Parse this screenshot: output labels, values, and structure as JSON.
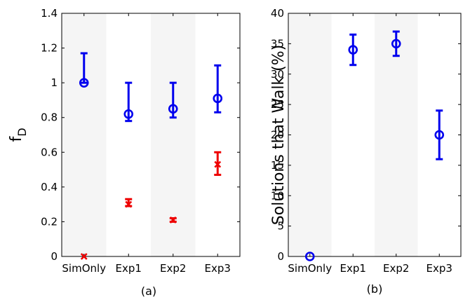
{
  "chart_data": [
    {
      "type": "scatter",
      "panel_label": "(a)",
      "ylabel_main": "f",
      "ylabel_sub": "D",
      "categories": [
        "SimOnly",
        "Exp1",
        "Exp2",
        "Exp3"
      ],
      "ylim": [
        0,
        1.4
      ],
      "yticks": [
        0,
        0.2,
        0.4,
        0.6,
        0.8,
        1,
        1.2,
        1.4
      ],
      "shaded_categories": [
        "SimOnly",
        "Exp2"
      ],
      "series": [
        {
          "marker": "circle",
          "color": "#0000ee",
          "points": [
            {
              "category": "SimOnly",
              "y": 1.0,
              "low": 1.0,
              "high": 1.17
            },
            {
              "category": "Exp1",
              "y": 0.82,
              "low": 0.78,
              "high": 1.0
            },
            {
              "category": "Exp2",
              "y": 0.85,
              "low": 0.8,
              "high": 1.0
            },
            {
              "category": "Exp3",
              "y": 0.91,
              "low": 0.83,
              "high": 1.1
            }
          ]
        },
        {
          "marker": "x",
          "color": "#ee0000",
          "points": [
            {
              "category": "SimOnly",
              "y": 0.0,
              "low": 0.0,
              "high": 0.0
            },
            {
              "category": "Exp1",
              "y": 0.3,
              "low": 0.29,
              "high": 0.33
            },
            {
              "category": "Exp2",
              "y": 0.21,
              "low": 0.2,
              "high": 0.22
            },
            {
              "category": "Exp3",
              "y": 0.53,
              "low": 0.47,
              "high": 0.6
            }
          ]
        }
      ]
    },
    {
      "type": "scatter",
      "panel_label": "(b)",
      "ylabel_main": "Solutions that Walk (%)",
      "ylabel_sub": "",
      "categories": [
        "SimOnly",
        "Exp1",
        "Exp2",
        "Exp3"
      ],
      "ylim": [
        0,
        40
      ],
      "yticks": [
        0,
        5,
        10,
        15,
        20,
        25,
        30,
        35,
        40
      ],
      "shaded_categories": [
        "SimOnly",
        "Exp2"
      ],
      "series": [
        {
          "marker": "circle",
          "color": "#0000ee",
          "points": [
            {
              "category": "SimOnly",
              "y": 0,
              "low": 0,
              "high": 0
            },
            {
              "category": "Exp1",
              "y": 34,
              "low": 31.5,
              "high": 36.5
            },
            {
              "category": "Exp2",
              "y": 35,
              "low": 33,
              "high": 37
            },
            {
              "category": "Exp3",
              "y": 20,
              "low": 16,
              "high": 24
            }
          ]
        }
      ]
    }
  ]
}
